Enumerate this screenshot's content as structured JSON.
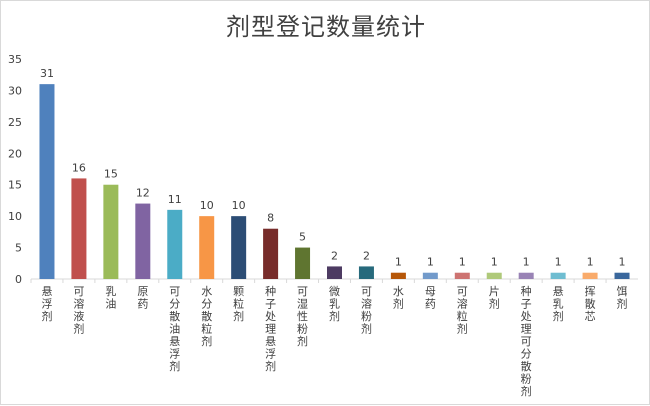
{
  "chart_data": {
    "type": "bar",
    "title": "剂型登记数量统计",
    "xlabel": "",
    "ylabel": "",
    "ylim": [
      0,
      35
    ],
    "yticks": [
      0,
      5,
      10,
      15,
      20,
      25,
      30,
      35
    ],
    "grid": false,
    "legend": "none",
    "categories": [
      "悬浮剂",
      "可溶液剂",
      "乳油",
      "原药",
      "可分散油悬浮剂",
      "水分散粒剂",
      "颗粒剂",
      "种子处理悬浮剂",
      "可湿性粉剂",
      "微乳剂",
      "可溶粉剂",
      "水剂",
      "母药",
      "可溶粒剂",
      "片剂",
      "种子处理可分散粉剂",
      "悬乳剂",
      "挥散芯",
      "饵剂"
    ],
    "values": [
      31,
      16,
      15,
      12,
      11,
      10,
      10,
      8,
      5,
      2,
      2,
      1,
      1,
      1,
      1,
      1,
      1,
      1,
      1
    ],
    "colors": [
      "#4f81bd",
      "#c0504d",
      "#9bbb59",
      "#8064a2",
      "#4bacc6",
      "#f79646",
      "#2c4d75",
      "#772c2a",
      "#5f7530",
      "#4d3b62",
      "#276a7c",
      "#b65708",
      "#729aca",
      "#cd7371",
      "#afc97a",
      "#9983b5",
      "#6fbdd1",
      "#f9ab6b",
      "#3a679c"
    ]
  }
}
